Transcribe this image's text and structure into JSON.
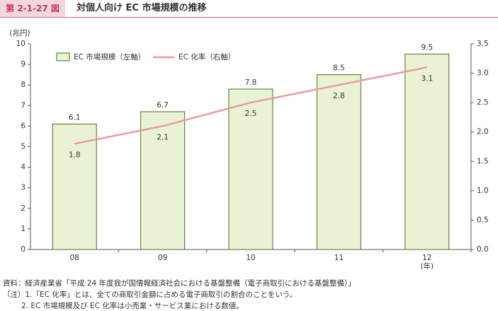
{
  "header": {
    "figure": "第 2-1-27 図",
    "title": "対個人向け EC 市場規模の推移"
  },
  "chart_data": {
    "type": "bar",
    "y_unit": "(兆円)",
    "x_unit": "(年)",
    "categories": [
      "08",
      "09",
      "10",
      "11",
      "12"
    ],
    "series": [
      {
        "name": "EC 市場規模（左軸）",
        "type": "bar",
        "color": "#e9f3d3",
        "values": [
          6.1,
          6.7,
          7.8,
          8.5,
          9.5
        ],
        "axis": "y"
      },
      {
        "name": "EC 化率（右軸）",
        "type": "line",
        "color": "#e89a9c",
        "values": [
          1.8,
          2.1,
          2.5,
          2.8,
          3.1
        ],
        "axis": "y2"
      }
    ],
    "ylim": [
      0,
      10
    ],
    "yticks": [
      0,
      1,
      2,
      3,
      4,
      5,
      6,
      7,
      8,
      9,
      10
    ],
    "y2lim": [
      0,
      3.5
    ],
    "y2ticks": [
      {
        "value": 0,
        "label": "0.0"
      },
      0.5,
      {
        "value": 1,
        "label": "1.0"
      },
      1.5,
      {
        "value": 2,
        "label": "2.0"
      },
      2.5,
      {
        "value": 3,
        "label": "3.0"
      },
      3.5
    ],
    "grid": false,
    "legend": "top-left"
  },
  "notes": [
    "資料：経済産業省「平成 24 年度我が国情報経済社会における基盤整備（電子商取引における基盤整備）」",
    "（注）1.「EC 化率」とは、全ての商取引金額に占める電子商取引の割合のことをいう。",
    "2. EC 市場規模及び EC 化率は小売業・サービス業における数値。"
  ]
}
